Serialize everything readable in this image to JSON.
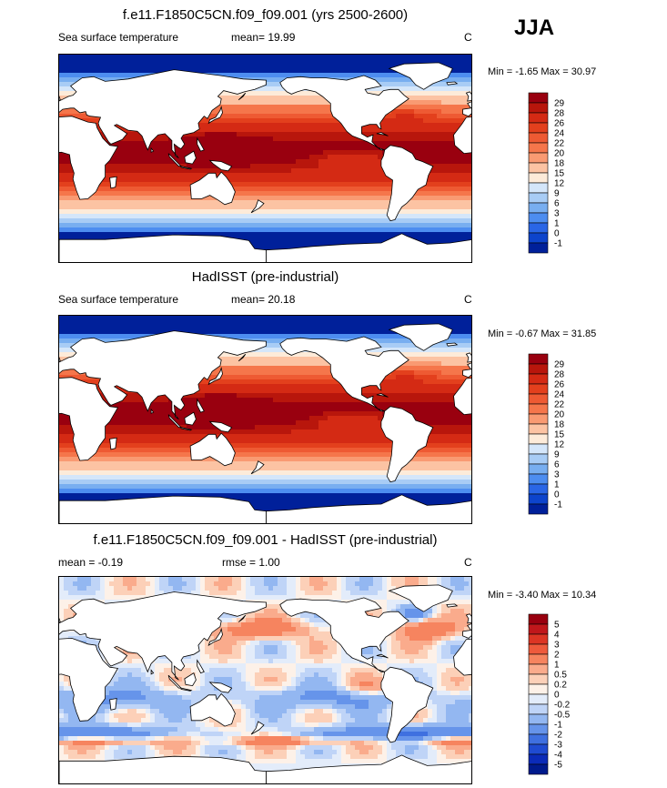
{
  "season": "JJA",
  "panels": [
    {
      "title": "f.e11.F1850C5CN.f09_f09.001 (yrs 2500-2600)",
      "variable": "Sea surface temperature",
      "stat1": "mean=  19.99",
      "stat2": "",
      "units": "C",
      "minmax": "Min =  -1.65 Max =  30.97",
      "field": "sst_model",
      "levels": [
        "29",
        "28",
        "26",
        "24",
        "22",
        "20",
        "18",
        "15",
        "12",
        "9",
        "6",
        "3",
        "1",
        "0",
        "-1"
      ],
      "colors": [
        "#99000f",
        "#b8160c",
        "#d42a14",
        "#e3401d",
        "#ee5a33",
        "#f5764b",
        "#f99a72",
        "#fcc3a3",
        "#fdebd9",
        "#d4e6fa",
        "#a8ccf5",
        "#78aef0",
        "#4d8df0",
        "#2a66e6",
        "#0d44cc",
        "#00209a"
      ]
    },
    {
      "title": "HadISST (pre-industrial)",
      "variable": "Sea surface temperature",
      "stat1": "mean=  20.18",
      "stat2": "",
      "units": "C",
      "minmax": "Min =  -0.67 Max =  31.85",
      "field": "sst_obs",
      "levels": [
        "29",
        "28",
        "26",
        "24",
        "22",
        "20",
        "18",
        "15",
        "12",
        "9",
        "6",
        "3",
        "1",
        "0",
        "-1"
      ],
      "colors": [
        "#99000f",
        "#b8160c",
        "#d42a14",
        "#e3401d",
        "#ee5a33",
        "#f5764b",
        "#f99a72",
        "#fcc3a3",
        "#fdebd9",
        "#d4e6fa",
        "#a8ccf5",
        "#78aef0",
        "#4d8df0",
        "#2a66e6",
        "#0d44cc",
        "#00209a"
      ]
    },
    {
      "title": "f.e11.F1850C5CN.f09_f09.001 - HadISST (pre-industrial)",
      "variable": "",
      "stat1": "mean =  -0.19",
      "stat2": "rmse =   1.00",
      "units": "C",
      "minmax": "Min =  -3.40 Max =  10.34",
      "field": "sst_diff",
      "levels": [
        "5",
        "4",
        "3",
        "2",
        "1",
        "0.5",
        "0.2",
        "0",
        "-0.2",
        "-0.5",
        "-1",
        "-2",
        "-3",
        "-4",
        "-5"
      ],
      "colors": [
        "#99000f",
        "#c0171b",
        "#dc3524",
        "#ee5a3c",
        "#f6845f",
        "#faab8c",
        "#fcd0b8",
        "#fdf1e8",
        "#e3ecfa",
        "#bfd4f7",
        "#93b7f1",
        "#6694ea",
        "#3f70e0",
        "#1f4bd1",
        "#0b2bb8",
        "#001a8c"
      ]
    }
  ],
  "chart_data": [
    {
      "type": "heatmap",
      "title": "f.e11.F1850C5CN.f09_f09.001 (yrs 2500-2600)",
      "subtitle": "Sea surface temperature",
      "units": "C",
      "mean": 19.99,
      "min": -1.65,
      "max": 30.97,
      "contour_levels": [
        -1,
        0,
        1,
        3,
        6,
        9,
        12,
        15,
        18,
        20,
        22,
        24,
        26,
        28,
        29
      ]
    },
    {
      "type": "heatmap",
      "title": "HadISST (pre-industrial)",
      "subtitle": "Sea surface temperature",
      "units": "C",
      "mean": 20.18,
      "min": -0.67,
      "max": 31.85,
      "contour_levels": [
        -1,
        0,
        1,
        3,
        6,
        9,
        12,
        15,
        18,
        20,
        22,
        24,
        26,
        28,
        29
      ]
    },
    {
      "type": "heatmap",
      "title": "f.e11.F1850C5CN.f09_f09.001 - HadISST (pre-industrial)",
      "units": "C",
      "mean": -0.19,
      "rmse": 1.0,
      "min": -3.4,
      "max": 10.34,
      "contour_levels": [
        -5,
        -4,
        -3,
        -2,
        -1,
        -0.5,
        -0.2,
        0,
        0.2,
        0.5,
        1,
        2,
        3,
        4,
        5
      ]
    }
  ]
}
